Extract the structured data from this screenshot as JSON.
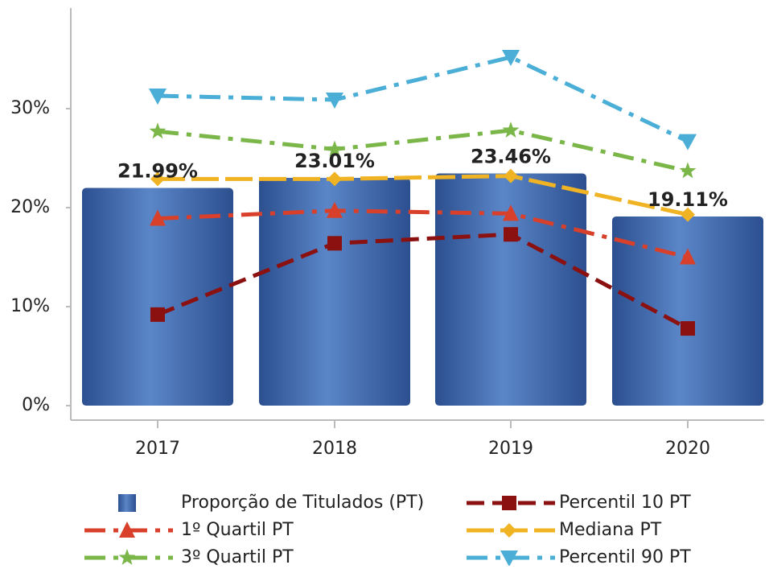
{
  "chart_data": {
    "type": "bar",
    "categories": [
      "2017",
      "2018",
      "2019",
      "2020"
    ],
    "ylim": [
      -1.46,
      40
    ],
    "yticks": [
      {
        "value": 0,
        "label": "0%"
      },
      {
        "value": 10,
        "label": "10%"
      },
      {
        "value": 20,
        "label": "20%"
      },
      {
        "value": 30,
        "label": "30%"
      }
    ],
    "grid": false,
    "legend": "bottom",
    "series": [
      {
        "name": "Proporção de Titulados (PT)",
        "type": "bar",
        "color": "#3d67ad",
        "values": [
          21.99,
          23.01,
          23.46,
          19.11
        ],
        "value_labels": [
          "21.99%",
          "23.01%",
          "23.46%",
          "19.11%"
        ]
      },
      {
        "name": "Percentil 10 PT",
        "type": "line",
        "color": "#8b1010",
        "marker": "square",
        "line_style": "dashed",
        "values": [
          9.2,
          16.4,
          17.3,
          7.8
        ]
      },
      {
        "name": "1º Quartil PT",
        "type": "line",
        "color": "#d9402b",
        "marker": "triangle-up",
        "line_style": "dashdot",
        "values": [
          18.9,
          19.7,
          19.4,
          15.0
        ]
      },
      {
        "name": "Mediana PT",
        "type": "line",
        "color": "#f0b323",
        "marker": "diamond",
        "line_style": "longdash",
        "values": [
          22.9,
          22.9,
          23.2,
          19.3
        ]
      },
      {
        "name": "3º Quartil PT",
        "type": "line",
        "color": "#7ab648",
        "marker": "star",
        "line_style": "dashdot",
        "values": [
          27.7,
          25.9,
          27.8,
          23.7
        ]
      },
      {
        "name": "Percentil 90 PT",
        "type": "line",
        "color": "#4aaed6",
        "marker": "triangle-down",
        "line_style": "dashdot",
        "values": [
          31.3,
          30.9,
          35.2,
          26.7
        ]
      }
    ]
  }
}
